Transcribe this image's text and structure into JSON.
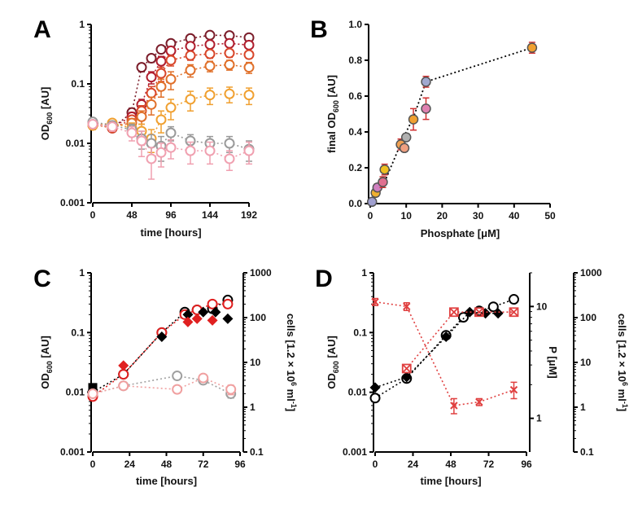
{
  "figure": {
    "panels": [
      {
        "id": "A",
        "letter": "A",
        "xlabel": "time [hours]",
        "ylabel": "OD",
        "ylabel_sub": "600",
        "ylabel_suffix": " [AU]"
      },
      {
        "id": "B",
        "letter": "B",
        "xlabel": "Phosphate [μM]",
        "ylabel": "final OD",
        "ylabel_sub": "600",
        "ylabel_suffix": " [AU]"
      },
      {
        "id": "C",
        "letter": "C",
        "xlabel": "time [hours]",
        "ylabel": "OD",
        "ylabel_sub": "600",
        "ylabel_suffix": " [AU]",
        "y2label": "cells [1.2 × 10",
        "y2label_sup": "6",
        "y2label_suffix": " ml",
        "y2label_sup2": "-1",
        "y2label_end": "]"
      },
      {
        "id": "D",
        "letter": "D",
        "xlabel": "time [hours]",
        "ylabel": "OD",
        "ylabel_sub": "600",
        "ylabel_suffix": " [AU]",
        "y2label": "P [μM]",
        "y3label": "cells [1.2 × 10",
        "y3label_sup": "6",
        "y3label_suffix": " ml",
        "y3label_sup2": "-1",
        "y3label_end": "]"
      }
    ]
  },
  "chart_data": [
    {
      "panel": "A",
      "type": "scatter",
      "xlim": [
        0,
        192
      ],
      "xticks": [
        0,
        48,
        96,
        144,
        192
      ],
      "ylog": true,
      "ylim": [
        0.001,
        1
      ],
      "yticks": [
        0.001,
        0.01,
        0.1,
        1
      ],
      "yticklabels": [
        "0.001",
        "0.01",
        "0.1",
        "1"
      ],
      "series": [
        {
          "color": "#7b1d2a",
          "marker": "circle",
          "line": "dotted",
          "x": [
            0,
            24,
            48,
            60,
            72,
            84,
            96,
            120,
            144,
            168,
            192
          ],
          "y": [
            0.022,
            0.018,
            0.033,
            0.19,
            0.27,
            0.38,
            0.48,
            0.58,
            0.66,
            0.65,
            0.6
          ],
          "err": [
            0.004,
            0.002,
            0.006,
            0.03,
            0.04,
            0.05,
            0.05,
            0.06,
            0.05,
            0.05,
            0.05
          ]
        },
        {
          "color": "#b01e2e",
          "marker": "circle",
          "line": "dotted",
          "x": [
            0,
            24,
            48,
            60,
            72,
            84,
            96,
            120,
            144,
            168,
            192
          ],
          "y": [
            0.022,
            0.019,
            0.028,
            0.045,
            0.13,
            0.24,
            0.36,
            0.43,
            0.46,
            0.48,
            0.45
          ],
          "err": [
            0.004,
            0.002,
            0.005,
            0.01,
            0.03,
            0.05,
            0.05,
            0.05,
            0.05,
            0.05,
            0.05
          ]
        },
        {
          "color": "#d8462a",
          "marker": "circle",
          "line": "dotted",
          "x": [
            0,
            24,
            48,
            60,
            72,
            84,
            96,
            120,
            144,
            168,
            192
          ],
          "y": [
            0.021,
            0.018,
            0.025,
            0.035,
            0.07,
            0.15,
            0.25,
            0.3,
            0.32,
            0.33,
            0.31
          ],
          "err": [
            0.003,
            0.002,
            0.004,
            0.008,
            0.02,
            0.04,
            0.05,
            0.05,
            0.05,
            0.05,
            0.04
          ]
        },
        {
          "color": "#e0702a",
          "marker": "circle",
          "line": "dotted",
          "x": [
            0,
            24,
            48,
            60,
            72,
            84,
            96,
            120,
            144,
            168,
            192
          ],
          "y": [
            0.02,
            0.019,
            0.022,
            0.028,
            0.045,
            0.09,
            0.12,
            0.17,
            0.2,
            0.21,
            0.19
          ],
          "err": [
            0.003,
            0.002,
            0.004,
            0.007,
            0.015,
            0.03,
            0.04,
            0.04,
            0.04,
            0.04,
            0.04
          ]
        },
        {
          "color": "#f0a030",
          "marker": "circle",
          "line": "dotted",
          "x": [
            0,
            24,
            48,
            60,
            72,
            84,
            96,
            120,
            144,
            168,
            192
          ],
          "y": [
            0.02,
            0.022,
            0.018,
            0.016,
            0.012,
            0.025,
            0.04,
            0.055,
            0.065,
            0.068,
            0.065
          ],
          "err": [
            0.003,
            0.003,
            0.004,
            0.005,
            0.005,
            0.01,
            0.015,
            0.02,
            0.02,
            0.02,
            0.02
          ]
        },
        {
          "color": "#9a9a9a",
          "marker": "circle",
          "line": "dotted",
          "x": [
            0,
            24,
            48,
            60,
            72,
            84,
            96,
            120,
            144,
            168,
            192
          ],
          "y": [
            0.023,
            0.02,
            0.017,
            0.012,
            0.01,
            0.009,
            0.015,
            0.011,
            0.01,
            0.01,
            0.008
          ],
          "err": [
            0.003,
            0.003,
            0.004,
            0.004,
            0.004,
            0.004,
            0.004,
            0.003,
            0.003,
            0.003,
            0.003
          ]
        },
        {
          "color": "#f0a0b0",
          "marker": "circle",
          "line": "dotted",
          "x": [
            0,
            24,
            48,
            60,
            72,
            84,
            96,
            120,
            144,
            168,
            192
          ],
          "y": [
            0.021,
            0.019,
            0.015,
            0.011,
            0.0055,
            0.007,
            0.0085,
            0.0075,
            0.0075,
            0.0055,
            0.0075
          ],
          "err": [
            0.003,
            0.003,
            0.004,
            0.005,
            0.003,
            0.003,
            0.003,
            0.003,
            0.003,
            0.002,
            0.003
          ]
        }
      ]
    },
    {
      "panel": "B",
      "type": "scatter",
      "xlim": [
        0,
        50
      ],
      "xticks": [
        0,
        10,
        20,
        30,
        40,
        50
      ],
      "ylim": [
        0,
        1
      ],
      "yticks": [
        0,
        0.2,
        0.4,
        0.6,
        0.8,
        1
      ],
      "yticklabels": [
        "0.0",
        "0.2",
        "0.4",
        "0.6",
        "0.8",
        "1.0"
      ],
      "fit": {
        "x": [
          0,
          1.5,
          4,
          9,
          12,
          15.5,
          45
        ],
        "y": [
          0.01,
          0.06,
          0.12,
          0.36,
          0.48,
          0.68,
          0.87
        ]
      },
      "points": [
        {
          "x": 0.5,
          "y": 0.01,
          "err": 0.01,
          "fill": "#a0a0d0"
        },
        {
          "x": 1.5,
          "y": 0.06,
          "err": 0.02,
          "fill": "#f0b030"
        },
        {
          "x": 2,
          "y": 0.09,
          "err": 0.02,
          "fill": "#d080c0"
        },
        {
          "x": 3.5,
          "y": 0.12,
          "err": 0.03,
          "fill": "#e07090"
        },
        {
          "x": 4,
          "y": 0.19,
          "err": 0.03,
          "fill": "#f0c020"
        },
        {
          "x": 8.5,
          "y": 0.33,
          "err": 0.03,
          "fill": "#f0a050"
        },
        {
          "x": 9.5,
          "y": 0.31,
          "err": 0.02,
          "fill": "#f0a080"
        },
        {
          "x": 10,
          "y": 0.37,
          "err": 0.02,
          "fill": "#b0b0b0"
        },
        {
          "x": 12,
          "y": 0.47,
          "err": 0.06,
          "fill": "#f0a030"
        },
        {
          "x": 15.5,
          "y": 0.68,
          "err": 0.03,
          "fill": "#a0a8d0"
        },
        {
          "x": 15.5,
          "y": 0.53,
          "err": 0.06,
          "fill": "#e080b0"
        },
        {
          "x": 45,
          "y": 0.87,
          "err": 0.03,
          "fill": "#f0a030"
        }
      ]
    },
    {
      "panel": "C",
      "type": "scatter",
      "xlim": [
        0,
        96
      ],
      "xticks": [
        0,
        24,
        48,
        72,
        96
      ],
      "ylog": true,
      "ylim": [
        0.001,
        1
      ],
      "yticks": [
        0.001,
        0.01,
        0.1,
        1
      ],
      "yticklabels": [
        "0.001",
        "0.01",
        "0.1",
        "1"
      ],
      "y2log": true,
      "y2lim": [
        0.1,
        1000
      ],
      "y2ticks": [
        0.1,
        1,
        10,
        100,
        1000
      ],
      "y2ticklabels": [
        "0.1",
        "1",
        "10",
        "100",
        "1000"
      ],
      "series": [
        {
          "name": "",
          "axis": "left",
          "marker": "circle-open",
          "color": "#000000",
          "line": "dotted",
          "x": [
            0,
            20,
            45,
            60,
            68,
            78,
            88
          ],
          "y": [
            0.01,
            0.02,
            0.1,
            0.22,
            0.24,
            0.25,
            0.35
          ]
        },
        {
          "axis": "left",
          "marker": "circle-open",
          "color": "#e02020",
          "line": "dotted",
          "x": [
            0,
            20,
            45,
            60,
            68,
            78,
            88
          ],
          "y": [
            0.0085,
            0.02,
            0.1,
            0.2,
            0.24,
            0.3,
            0.3
          ]
        },
        {
          "axis": "left",
          "marker": "square",
          "color": "#000000",
          "line": "none",
          "x": [
            0
          ],
          "y": [
            0.012
          ]
        },
        {
          "axis": "left",
          "marker": "diamond",
          "color": "#000000",
          "line": "none",
          "x": [
            45,
            62,
            72,
            80,
            88
          ],
          "y": [
            0.085,
            0.2,
            0.22,
            0.22,
            0.17
          ]
        },
        {
          "axis": "left",
          "marker": "diamond",
          "color": "#e02020",
          "line": "none",
          "x": [
            20,
            62,
            68,
            78
          ],
          "y": [
            0.028,
            0.15,
            0.17,
            0.16
          ]
        },
        {
          "axis": "right",
          "marker": "circle-open",
          "color": "#a0a0a0",
          "line": "dotted",
          "x": [
            0,
            20,
            55,
            72,
            90
          ],
          "y": [
            2.0,
            3.0,
            5.0,
            4.0,
            2.0
          ],
          "err": [
            0.3,
            0.3,
            0.5,
            0.5,
            0.4
          ]
        },
        {
          "axis": "right",
          "marker": "circle-open",
          "color": "#f0a0a0",
          "line": "dotted",
          "x": [
            0,
            20,
            55,
            72,
            90
          ],
          "y": [
            2.0,
            3.0,
            2.5,
            4.5,
            2.5
          ],
          "err": [
            0.3,
            0.3,
            0.4,
            0.6,
            0.6
          ]
        }
      ]
    },
    {
      "panel": "D",
      "type": "scatter",
      "xlim": [
        0,
        96
      ],
      "xticks": [
        0,
        24,
        48,
        72,
        96
      ],
      "ylog": true,
      "ylim": [
        0.001,
        1
      ],
      "yticks": [
        0.001,
        0.01,
        0.1,
        1
      ],
      "yticklabels": [
        "0.001",
        "0.01",
        "0.1",
        "1"
      ],
      "y2log": true,
      "y2lim": [
        0.5,
        20
      ],
      "y2ticks": [
        1,
        10
      ],
      "y2ticklabels": [
        "1",
        "10"
      ],
      "y3log": true,
      "y3lim": [
        0.1,
        1000
      ],
      "y3ticks": [
        0.1,
        1,
        10,
        100,
        1000
      ],
      "y3ticklabels": [
        "0.1",
        "1",
        "10",
        "100",
        "1000"
      ],
      "series": [
        {
          "axis": "left",
          "marker": "circle-open",
          "color": "#000000",
          "line": "dotted",
          "x": [
            0,
            20,
            45,
            56,
            66,
            75,
            88
          ],
          "y": [
            0.008,
            0.017,
            0.09,
            0.18,
            0.23,
            0.27,
            0.36
          ],
          "err": [
            0.001,
            0.002,
            0.01,
            0.02,
            0.02,
            0.03,
            0.03
          ]
        },
        {
          "axis": "left",
          "marker": "diamond",
          "color": "#000000",
          "line": "dotted",
          "x": [
            0,
            20,
            45,
            60,
            70,
            78
          ],
          "y": [
            0.012,
            0.018,
            0.085,
            0.22,
            0.21,
            0.21
          ]
        },
        {
          "axis": "y2",
          "marker": "cross",
          "color": "#e04040",
          "line": "dotted",
          "x": [
            0,
            20,
            50,
            66,
            88
          ],
          "y": [
            11,
            10,
            1.3,
            1.4,
            1.8
          ],
          "err": [
            0.8,
            0.8,
            0.2,
            0.1,
            0.3
          ]
        },
        {
          "axis": "left",
          "marker": "square-cross",
          "color": "#e04040",
          "line": "dotted",
          "x": [
            20,
            50,
            66,
            88
          ],
          "y": [
            0.025,
            0.22,
            0.22,
            0.22
          ]
        }
      ]
    }
  ]
}
